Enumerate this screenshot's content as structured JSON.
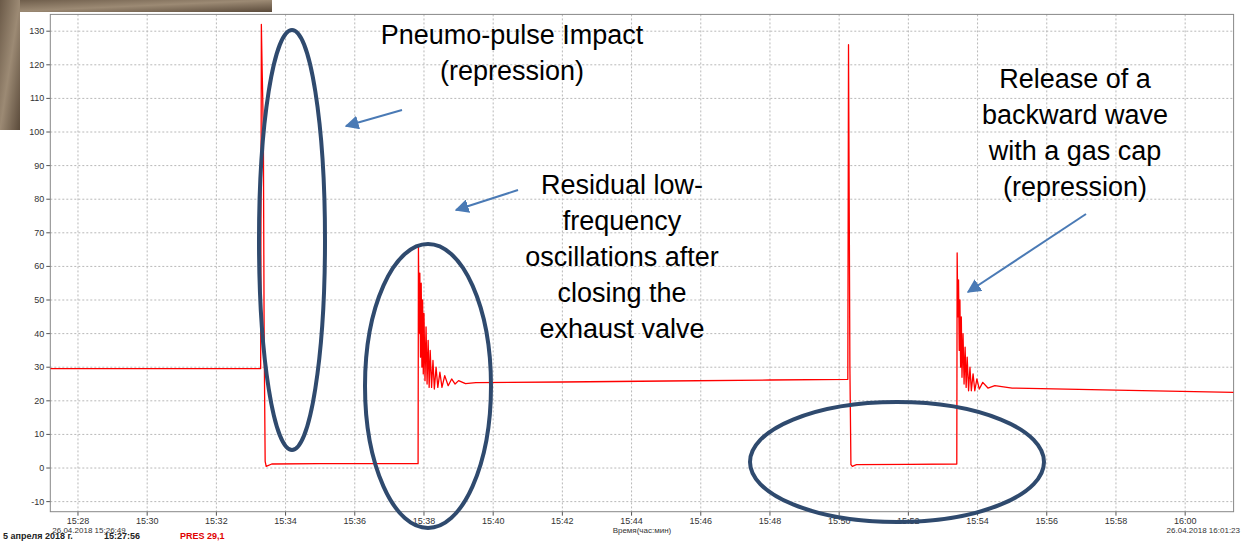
{
  "chart_data": {
    "type": "line",
    "color": "#ff0000",
    "grid": true,
    "x_label": "Время(час:мин)",
    "x_range_labels": [
      "26.04.2018 15:26:49",
      "26.04.2018 16:01:23"
    ],
    "footer": {
      "date": "5 апреля 2018 г.",
      "time": "15:27:56",
      "reading": "PRES 29,1"
    },
    "annotations": [
      {
        "text": [
          "Pneumo-pulse Impact",
          "(repression)"
        ]
      },
      {
        "text": [
          "Residual low-",
          "frequency",
          "oscillations after",
          "closing the",
          "exhaust valve"
        ]
      },
      {
        "text": [
          "Release of a",
          "backward wave",
          "with a gas cap",
          "(repression)"
        ]
      }
    ],
    "xlim": [
      27.2,
      61.4
    ],
    "ylim": [
      -13,
      135
    ],
    "xticks": [
      {
        "value": 28,
        "label": "15:28"
      },
      {
        "value": 30,
        "label": "15:30"
      },
      {
        "value": 32,
        "label": "15:32"
      },
      {
        "value": 34,
        "label": "15:34"
      },
      {
        "value": 36,
        "label": "15:36"
      },
      {
        "value": 38,
        "label": "15:38"
      },
      {
        "value": 40,
        "label": "15:40"
      },
      {
        "value": 42,
        "label": "15:42"
      },
      {
        "value": 44,
        "label": "15:44"
      },
      {
        "value": 46,
        "label": "15:46"
      },
      {
        "value": 48,
        "label": "15:48"
      },
      {
        "value": 50,
        "label": "15:50"
      },
      {
        "value": 52,
        "label": "15:52"
      },
      {
        "value": 54,
        "label": "15:54"
      },
      {
        "value": 56,
        "label": "15:56"
      },
      {
        "value": 58,
        "label": "15:58"
      },
      {
        "value": 60,
        "label": "16:00"
      }
    ],
    "yticks": [
      -10,
      0,
      10,
      20,
      30,
      40,
      50,
      60,
      70,
      80,
      90,
      100,
      110,
      120,
      130
    ],
    "x": [
      27.2,
      30,
      33.28,
      33.3,
      33.32,
      33.34,
      33.36,
      33.38,
      33.41,
      33.44,
      33.6,
      35,
      37.8,
      37.83,
      37.84,
      37.86,
      37.88,
      37.9,
      37.92,
      37.94,
      37.96,
      37.98,
      38.0,
      38.03,
      38.06,
      38.09,
      38.12,
      38.15,
      38.18,
      38.22,
      38.26,
      38.3,
      38.35,
      38.4,
      38.46,
      38.52,
      38.6,
      38.7,
      38.8,
      38.9,
      39.0,
      39.2,
      39.5,
      42,
      45,
      48,
      50.25,
      50.27,
      50.29,
      50.31,
      50.34,
      50.38,
      50.5,
      52,
      53.4,
      53.41,
      53.43,
      53.45,
      53.47,
      53.49,
      53.51,
      53.53,
      53.55,
      53.58,
      53.61,
      53.64,
      53.67,
      53.7,
      53.74,
      53.78,
      53.82,
      53.87,
      53.92,
      53.98,
      54.05,
      54.15,
      54.3,
      54.5,
      55,
      58,
      61.4
    ],
    "values": [
      29.6,
      29.6,
      29.6,
      132,
      120,
      110,
      95,
      40,
      2,
      0.5,
      1.2,
      1.3,
      1.3,
      1.3,
      66,
      40,
      58,
      33,
      55,
      30,
      50,
      28,
      46,
      26,
      42,
      25,
      38,
      24,
      35,
      24,
      32,
      23.5,
      30,
      24,
      28.5,
      24,
      27.5,
      24.5,
      26.5,
      25,
      26,
      25.1,
      25.4,
      25.6,
      25.9,
      26.2,
      26.4,
      126,
      80,
      30,
      1,
      0.5,
      1,
      1.1,
      1.2,
      64,
      45,
      56,
      35,
      50,
      30,
      45,
      27,
      40,
      25,
      36,
      24,
      33,
      23,
      30,
      23,
      28,
      23,
      26.5,
      23.5,
      25.5,
      23.8,
      24.5,
      23.8,
      23.2,
      22.5
    ]
  }
}
